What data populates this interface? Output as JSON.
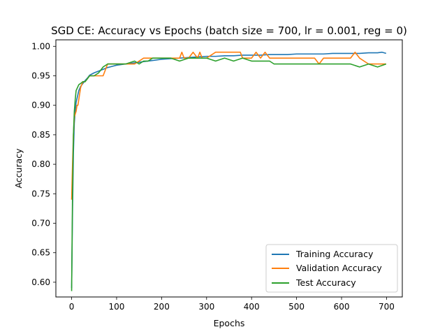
{
  "chart_data": {
    "type": "line",
    "title": "SGD CE: Accuracy vs Epochs (batch size = 700, lr = 0.001, reg = 0)",
    "xlabel": "Epochs",
    "ylabel": "Accuracy",
    "xlim": [
      -35,
      735
    ],
    "ylim": [
      0.575,
      1.011
    ],
    "xticks": [
      0,
      100,
      200,
      300,
      400,
      500,
      600,
      700
    ],
    "yticks": [
      0.6,
      0.65,
      0.7,
      0.75,
      0.8,
      0.85,
      0.9,
      0.95,
      1.0
    ],
    "xtick_labels": [
      "0",
      "100",
      "200",
      "300",
      "400",
      "500",
      "600",
      "700"
    ],
    "ytick_labels": [
      "0.60",
      "0.65",
      "0.70",
      "0.75",
      "0.80",
      "0.85",
      "0.90",
      "0.95",
      "1.00"
    ],
    "grid": false,
    "legend_position": "lower-right",
    "series": [
      {
        "name": "Training Accuracy",
        "color": "#1f77b4",
        "x": [
          0,
          2,
          4,
          6,
          8,
          10,
          13,
          16,
          20,
          25,
          30,
          35,
          40,
          50,
          60,
          70,
          80,
          90,
          100,
          120,
          140,
          160,
          180,
          200,
          220,
          240,
          260,
          280,
          300,
          320,
          340,
          360,
          380,
          400,
          420,
          440,
          460,
          480,
          500,
          520,
          540,
          560,
          580,
          600,
          620,
          640,
          660,
          680,
          690,
          699
        ],
        "y": [
          0.59,
          0.72,
          0.82,
          0.87,
          0.89,
          0.905,
          0.915,
          0.925,
          0.932,
          0.937,
          0.942,
          0.946,
          0.951,
          0.955,
          0.958,
          0.961,
          0.964,
          0.966,
          0.968,
          0.97,
          0.972,
          0.974,
          0.976,
          0.978,
          0.979,
          0.98,
          0.981,
          0.982,
          0.983,
          0.983,
          0.984,
          0.984,
          0.985,
          0.985,
          0.985,
          0.986,
          0.986,
          0.986,
          0.987,
          0.987,
          0.987,
          0.987,
          0.988,
          0.988,
          0.988,
          0.988,
          0.989,
          0.989,
          0.99,
          0.988
        ]
      },
      {
        "name": "Validation Accuracy",
        "color": "#ff7f0e",
        "x": [
          0,
          2,
          4,
          6,
          8,
          10,
          12,
          14,
          16,
          18,
          20,
          25,
          30,
          40,
          50,
          60,
          70,
          75,
          80,
          90,
          100,
          120,
          140,
          160,
          180,
          200,
          220,
          240,
          245,
          250,
          260,
          270,
          280,
          285,
          290,
          300,
          320,
          340,
          360,
          375,
          380,
          400,
          410,
          420,
          430,
          440,
          460,
          480,
          500,
          520,
          540,
          550,
          560,
          580,
          600,
          620,
          630,
          640,
          660,
          680,
          699
        ],
        "y": [
          0.74,
          0.8,
          0.85,
          0.88,
          0.885,
          0.89,
          0.9,
          0.9,
          0.91,
          0.92,
          0.93,
          0.94,
          0.94,
          0.95,
          0.95,
          0.95,
          0.95,
          0.96,
          0.97,
          0.97,
          0.97,
          0.97,
          0.97,
          0.98,
          0.98,
          0.98,
          0.98,
          0.98,
          0.99,
          0.98,
          0.98,
          0.99,
          0.98,
          0.99,
          0.98,
          0.98,
          0.99,
          0.99,
          0.99,
          0.99,
          0.98,
          0.98,
          0.99,
          0.98,
          0.99,
          0.98,
          0.98,
          0.98,
          0.98,
          0.98,
          0.98,
          0.97,
          0.98,
          0.98,
          0.98,
          0.98,
          0.99,
          0.98,
          0.97,
          0.97,
          0.97
        ]
      },
      {
        "name": "Test Accuracy",
        "color": "#2ca02c",
        "x": [
          0,
          2,
          4,
          6,
          8,
          10,
          13,
          16,
          20,
          25,
          30,
          35,
          40,
          50,
          60,
          70,
          80,
          90,
          100,
          110,
          120,
          140,
          150,
          160,
          170,
          180,
          200,
          220,
          240,
          260,
          280,
          300,
          320,
          340,
          360,
          380,
          400,
          420,
          440,
          450,
          460,
          480,
          500,
          520,
          540,
          560,
          580,
          600,
          620,
          640,
          660,
          680,
          699
        ],
        "y": [
          0.585,
          0.75,
          0.85,
          0.89,
          0.91,
          0.925,
          0.93,
          0.935,
          0.937,
          0.94,
          0.94,
          0.945,
          0.95,
          0.95,
          0.955,
          0.965,
          0.97,
          0.97,
          0.97,
          0.97,
          0.97,
          0.975,
          0.97,
          0.975,
          0.975,
          0.98,
          0.98,
          0.98,
          0.975,
          0.98,
          0.98,
          0.98,
          0.975,
          0.98,
          0.975,
          0.98,
          0.975,
          0.975,
          0.975,
          0.97,
          0.97,
          0.97,
          0.97,
          0.97,
          0.97,
          0.97,
          0.97,
          0.97,
          0.97,
          0.965,
          0.97,
          0.965,
          0.97
        ]
      }
    ]
  }
}
